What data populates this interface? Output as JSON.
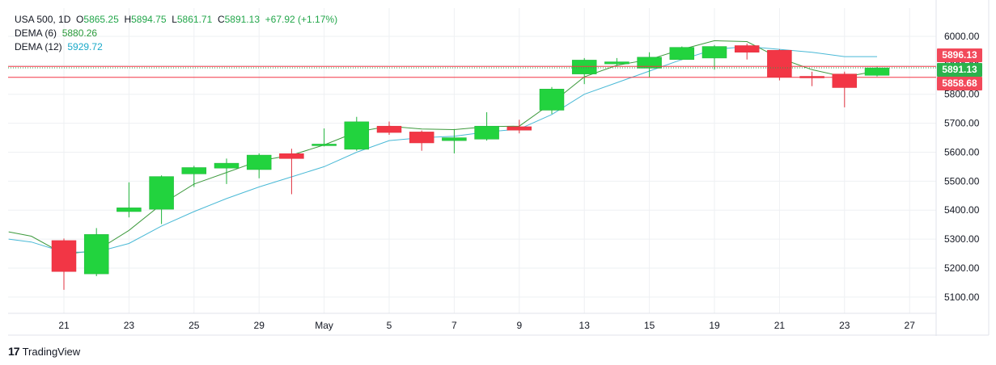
{
  "legend": {
    "symbol": "USA 500, 1D",
    "o_label": "O",
    "o_value": "5865.25",
    "h_label": "H",
    "h_value": "5894.75",
    "l_label": "L",
    "l_value": "5861.71",
    "c_label": "C",
    "c_value": "5891.13",
    "change": "+67.92 (+1.17%)",
    "dema6_label": "DEMA (6)",
    "dema6_value": "5880.26",
    "dema12_label": "DEMA (12)",
    "dema12_value": "5929.72"
  },
  "footer": {
    "brand": "TradingView"
  },
  "colors": {
    "up": "#22d33e",
    "down": "#f23645",
    "dema6": "#3d9a3d",
    "dema12": "#49b9d6",
    "grid": "#eef0f3",
    "price_tag_red": "#f2495a",
    "price_tag_green": "#2bb24c"
  },
  "chart_data": {
    "type": "candlestick",
    "yticks": [
      5100,
      5200,
      5300,
      5400,
      5500,
      5600,
      5700,
      5800,
      5900,
      6000
    ],
    "ylim": [
      5030,
      6100
    ],
    "xticks": [
      {
        "label": "21",
        "i": 0
      },
      {
        "label": "23",
        "i": 2
      },
      {
        "label": "25",
        "i": 4
      },
      {
        "label": "29",
        "i": 6
      },
      {
        "label": "May",
        "i": 8
      },
      {
        "label": "5",
        "i": 10
      },
      {
        "label": "7",
        "i": 12
      },
      {
        "label": "9",
        "i": 14
      },
      {
        "label": "13",
        "i": 16
      },
      {
        "label": "15",
        "i": 18
      },
      {
        "label": "19",
        "i": 20
      },
      {
        "label": "21",
        "i": 22
      },
      {
        "label": "23",
        "i": 24
      },
      {
        "label": "27",
        "i": 26
      }
    ],
    "candles": [
      {
        "i": 0,
        "o": 5295,
        "h": 5302,
        "l": 5125,
        "c": 5188
      },
      {
        "i": 1,
        "o": 5180,
        "h": 5338,
        "l": 5172,
        "c": 5316
      },
      {
        "i": 2,
        "o": 5395,
        "h": 5496,
        "l": 5375,
        "c": 5408
      },
      {
        "i": 3,
        "o": 5403,
        "h": 5520,
        "l": 5352,
        "c": 5516
      },
      {
        "i": 4,
        "o": 5525,
        "h": 5553,
        "l": 5480,
        "c": 5547
      },
      {
        "i": 5,
        "o": 5545,
        "h": 5578,
        "l": 5490,
        "c": 5562
      },
      {
        "i": 6,
        "o": 5540,
        "h": 5596,
        "l": 5510,
        "c": 5590
      },
      {
        "i": 7,
        "o": 5595,
        "h": 5612,
        "l": 5455,
        "c": 5578
      },
      {
        "i": 8,
        "o": 5625,
        "h": 5682,
        "l": 5620,
        "c": 5628
      },
      {
        "i": 9,
        "o": 5610,
        "h": 5722,
        "l": 5605,
        "c": 5705
      },
      {
        "i": 10,
        "o": 5690,
        "h": 5706,
        "l": 5660,
        "c": 5668
      },
      {
        "i": 11,
        "o": 5670,
        "h": 5675,
        "l": 5605,
        "c": 5632
      },
      {
        "i": 12,
        "o": 5640,
        "h": 5680,
        "l": 5596,
        "c": 5650
      },
      {
        "i": 13,
        "o": 5645,
        "h": 5738,
        "l": 5640,
        "c": 5690
      },
      {
        "i": 14,
        "o": 5688,
        "h": 5712,
        "l": 5665,
        "c": 5676
      },
      {
        "i": 15,
        "o": 5745,
        "h": 5825,
        "l": 5732,
        "c": 5818
      },
      {
        "i": 16,
        "o": 5870,
        "h": 5925,
        "l": 5835,
        "c": 5918
      },
      {
        "i": 17,
        "o": 5905,
        "h": 5925,
        "l": 5898,
        "c": 5912
      },
      {
        "i": 18,
        "o": 5890,
        "h": 5945,
        "l": 5858,
        "c": 5928
      },
      {
        "i": 19,
        "o": 5920,
        "h": 5965,
        "l": 5918,
        "c": 5962
      },
      {
        "i": 20,
        "o": 5925,
        "h": 5970,
        "l": 5885,
        "c": 5965
      },
      {
        "i": 21,
        "o": 5968,
        "h": 5975,
        "l": 5920,
        "c": 5945
      },
      {
        "i": 22,
        "o": 5952,
        "h": 5955,
        "l": 5848,
        "c": 5860
      },
      {
        "i": 23,
        "o": 5862,
        "h": 5878,
        "l": 5828,
        "c": 5858
      },
      {
        "i": 24,
        "o": 5870,
        "h": 5878,
        "l": 5755,
        "c": 5823
      },
      {
        "i": 25,
        "o": 5865.25,
        "h": 5894.75,
        "l": 5861.71,
        "c": 5891.13
      }
    ],
    "series": [
      {
        "name": "DEMA (6)",
        "x": [
          -1.7,
          -1,
          0,
          1,
          2,
          3,
          4,
          5,
          6,
          7,
          8,
          9,
          10,
          11,
          12,
          13,
          14,
          15,
          16,
          17,
          18,
          19,
          20,
          21,
          22,
          23,
          24,
          25
        ],
        "y": [
          5325,
          5310,
          5248,
          5260,
          5330,
          5420,
          5490,
          5530,
          5570,
          5590,
          5625,
          5670,
          5690,
          5680,
          5678,
          5688,
          5690,
          5770,
          5860,
          5900,
          5920,
          5955,
          5985,
          5982,
          5925,
          5885,
          5860,
          5880
        ]
      },
      {
        "name": "DEMA (12)",
        "x": [
          -1.7,
          -1,
          0,
          1,
          2,
          3,
          4,
          5,
          6,
          7,
          8,
          9,
          10,
          11,
          12,
          13,
          14,
          15,
          16,
          17,
          18,
          19,
          20,
          21,
          22,
          23,
          24,
          25
        ],
        "y": [
          5300,
          5290,
          5255,
          5255,
          5285,
          5345,
          5395,
          5440,
          5480,
          5515,
          5550,
          5600,
          5640,
          5650,
          5655,
          5670,
          5680,
          5730,
          5800,
          5840,
          5880,
          5920,
          5955,
          5965,
          5955,
          5945,
          5930,
          5930
        ]
      }
    ],
    "price_lines": [
      {
        "value": 5896.13,
        "label": "5896.13",
        "style": "solid",
        "color": "#f23645"
      },
      {
        "value": 5891.13,
        "label": "5891.13",
        "style": "dotted",
        "color": "#22a64a"
      },
      {
        "value": 5858.68,
        "label": "5858.68",
        "style": "solid",
        "color": "#f23645"
      }
    ]
  }
}
